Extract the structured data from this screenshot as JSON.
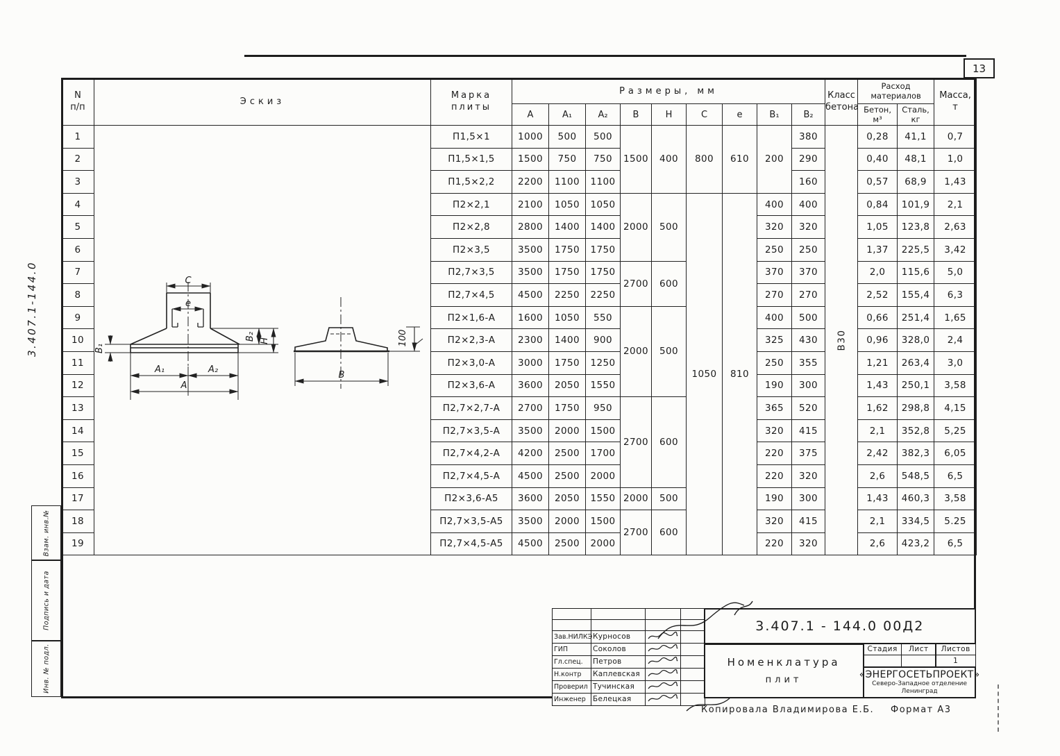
{
  "page": {
    "sheet_number": "13",
    "side_doc_number": "3.407.1-144.0",
    "footer_copied": "Копировала  Владимирова Е.Б.",
    "footer_format": "Формат А3"
  },
  "margin_stamps": [
    "Взам. инв.№",
    "Подпись и дата",
    "Инв. № подл."
  ],
  "table": {
    "header": {
      "num_top": "N",
      "num_bottom": "п/п",
      "sketch": "Эскиз",
      "mark1": "Марка",
      "mark2": "плиты",
      "dims_group": "Размеры,  мм",
      "dim_cols": [
        "А",
        "А₁",
        "А₂",
        "В",
        "Н",
        "С",
        "е",
        "В₁",
        "В₂"
      ],
      "class1": "Класс",
      "class2": "бетона",
      "mat1": "Расход",
      "mat2": "материалов",
      "mat_col1a": "Бетон,",
      "mat_col1b": "м³",
      "mat_col2a": "Сталь,",
      "mat_col2b": "кг",
      "mass1": "Масса,",
      "mass2": "т"
    },
    "rows": [
      {
        "n": "1",
        "sketch": {
          "v": "",
          "rs": 19
        },
        "mark": "П1,5×1",
        "a": "1000",
        "a1": "500",
        "a2": "500",
        "b": {
          "v": "1500",
          "rs": 3
        },
        "h": {
          "v": "400",
          "rs": 3
        },
        "c": {
          "v": "800",
          "rs": 3
        },
        "e": {
          "v": "610",
          "rs": 3
        },
        "b1": {
          "v": "200",
          "rs": 3
        },
        "b2": "380",
        "cls": {
          "v": "В30",
          "rs": 19
        },
        "beton": "0,28",
        "stal": "41,1",
        "massa": "0,7"
      },
      {
        "n": "2",
        "mark": "П1,5×1,5",
        "a": "1500",
        "a1": "750",
        "a2": "750",
        "b2": "290",
        "beton": "0,40",
        "stal": "48,1",
        "massa": "1,0"
      },
      {
        "n": "3",
        "mark": "П1,5×2,2",
        "a": "2200",
        "a1": "1100",
        "a2": "1100",
        "b2": "160",
        "beton": "0,57",
        "stal": "68,9",
        "massa": "1,43"
      },
      {
        "n": "4",
        "mark": "П2×2,1",
        "a": "2100",
        "a1": "1050",
        "a2": "1050",
        "b": {
          "v": "2000",
          "rs": 3
        },
        "h": {
          "v": "500",
          "rs": 3
        },
        "c": {
          "v": "1050",
          "rs": 16,
          "cls": "nudge-up"
        },
        "e": {
          "v": "810",
          "rs": 16,
          "cls": "nudge-up"
        },
        "b1": "400",
        "b2": "400",
        "beton": "0,84",
        "stal": "101,9",
        "massa": "2,1"
      },
      {
        "n": "5",
        "mark": "П2×2,8",
        "a": "2800",
        "a1": "1400",
        "a2": "1400",
        "b1": "320",
        "b2": "320",
        "beton": "1,05",
        "stal": "123,8",
        "massa": "2,63"
      },
      {
        "n": "6",
        "mark": "П2×3,5",
        "a": "3500",
        "a1": "1750",
        "a2": "1750",
        "b1": "250",
        "b2": "250",
        "beton": "1,37",
        "stal": "225,5",
        "massa": "3,42"
      },
      {
        "n": "7",
        "mark": "П2,7×3,5",
        "a": "3500",
        "a1": "1750",
        "a2": "1750",
        "b": {
          "v": "2700",
          "rs": 2
        },
        "h": {
          "v": "600",
          "rs": 2
        },
        "b1": "370",
        "b2": "370",
        "beton": "2,0",
        "stal": "115,6",
        "massa": "5,0"
      },
      {
        "n": "8",
        "mark": "П2,7×4,5",
        "a": "4500",
        "a1": "2250",
        "a2": "2250",
        "b1": "270",
        "b2": "270",
        "beton": "2,52",
        "stal": "155,4",
        "massa": "6,3"
      },
      {
        "n": "9",
        "mark": "П2×1,6-А",
        "a": "1600",
        "a1": "1050",
        "a2": "550",
        "b": {
          "v": "2000",
          "rs": 4
        },
        "h": {
          "v": "500",
          "rs": 4
        },
        "b1": "400",
        "b2": "500",
        "beton": "0,66",
        "stal": "251,4",
        "massa": "1,65"
      },
      {
        "n": "10",
        "mark": "П2×2,3-А",
        "a": "2300",
        "a1": "1400",
        "a2": "900",
        "b1": "325",
        "b2": "430",
        "beton": "0,96",
        "stal": "328,0",
        "massa": "2,4"
      },
      {
        "n": "11",
        "mark": "П2×3,0-А",
        "a": "3000",
        "a1": "1750",
        "a2": "1250",
        "b1": "250",
        "b2": "355",
        "beton": "1,21",
        "stal": "263,4",
        "massa": "3,0"
      },
      {
        "n": "12",
        "mark": "П2×3,6-А",
        "a": "3600",
        "a1": "2050",
        "a2": "1550",
        "b1": "190",
        "b2": "300",
        "beton": "1,43",
        "stal": "250,1",
        "massa": "3,58"
      },
      {
        "n": "13",
        "mark": "П2,7×2,7-А",
        "a": "2700",
        "a1": "1750",
        "a2": "950",
        "b": {
          "v": "2700",
          "rs": 4
        },
        "h": {
          "v": "600",
          "rs": 4
        },
        "b1": "365",
        "b2": "520",
        "beton": "1,62",
        "stal": "298,8",
        "massa": "4,15"
      },
      {
        "n": "14",
        "mark": "П2,7×3,5-А",
        "a": "3500",
        "a1": "2000",
        "a2": "1500",
        "b1": "320",
        "b2": "415",
        "beton": "2,1",
        "stal": "352,8",
        "massa": "5,25"
      },
      {
        "n": "15",
        "mark": "П2,7×4,2-А",
        "a": "4200",
        "a1": "2500",
        "a2": "1700",
        "b1": "220",
        "b2": "375",
        "beton": "2,42",
        "stal": "382,3",
        "massa": "6,05"
      },
      {
        "n": "16",
        "mark": "П2,7×4,5-А",
        "a": "4500",
        "a1": "2500",
        "a2": "2000",
        "b1": "220",
        "b2": "320",
        "beton": "2,6",
        "stal": "548,5",
        "massa": "6,5"
      },
      {
        "n": "17",
        "mark": "П2×3,6-А5",
        "a": "3600",
        "a1": "2050",
        "a2": "1550",
        "b": {
          "v": "2000",
          "rs": 1
        },
        "h": {
          "v": "500",
          "rs": 1
        },
        "b1": "190",
        "b2": "300",
        "beton": "1,43",
        "stal": "460,3",
        "massa": "3,58"
      },
      {
        "n": "18",
        "mark": "П2,7×3,5-А5",
        "a": "3500",
        "a1": "2000",
        "a2": "1500",
        "b": {
          "v": "2700",
          "rs": 2
        },
        "h": {
          "v": "600",
          "rs": 2
        },
        "b1": "320",
        "b2": "415",
        "beton": "2,1",
        "stal": "334,5",
        "massa": "5.25"
      },
      {
        "n": "19",
        "mark": "П2,7×4,5-А5",
        "a": "4500",
        "a1": "2500",
        "a2": "2000",
        "b1": "220",
        "b2": "320",
        "beton": "2,6",
        "stal": "423,2",
        "massa": "6,5"
      }
    ]
  },
  "sketch_labels": {
    "c": "С",
    "e": "е",
    "b1": "В₁",
    "b2": "В₂",
    "h": "Н",
    "a1": "А₁",
    "a2": "А₂",
    "a": "А",
    "b": "В",
    "h100": "100"
  },
  "title_block": {
    "doc_number": "3.407.1 - 144.0   00Д2",
    "title_line1": "Номенклатура",
    "title_line2": "плит",
    "signatures": [
      {
        "role": "Зав.НИЛКЭ",
        "name": "Курносов"
      },
      {
        "role": "ГИП",
        "name": "Соколов"
      },
      {
        "role": "Гл.спец.",
        "name": "Петров"
      },
      {
        "role": "Н.контр",
        "name": "Каплевская"
      },
      {
        "role": "Проверил",
        "name": "Тучинская"
      },
      {
        "role": "Инженер",
        "name": "Белецкая"
      }
    ],
    "stage_label": "Стадия",
    "sheet_label": "Лист",
    "sheets_label": "Листов",
    "sheets_value": "1",
    "org_name": "«ЭНЕРГОСЕТЬПРОЕКТ»",
    "org_branch": "Северо-Западное отделение",
    "org_city": "Ленинград"
  }
}
